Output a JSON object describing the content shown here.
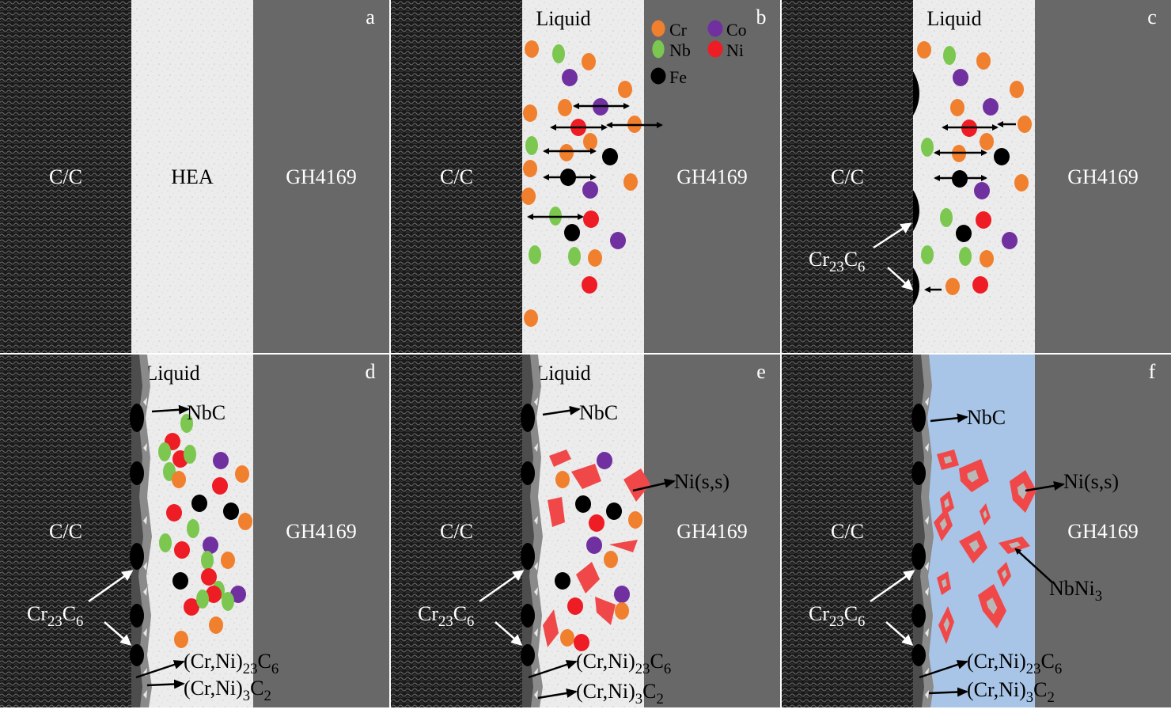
{
  "panels": [
    {
      "letter": "a",
      "cc_label": "C/C",
      "middle_label": "HEA",
      "alloy_label": "GH4169",
      "liquid_label": ""
    },
    {
      "letter": "b",
      "cc_label": "C/C",
      "middle_label": "",
      "alloy_label": "GH4169",
      "liquid_label": "Liquid"
    },
    {
      "letter": "c",
      "cc_label": "C/C",
      "middle_label": "",
      "alloy_label": "GH4169",
      "liquid_label": "Liquid"
    },
    {
      "letter": "d",
      "cc_label": "C/C",
      "middle_label": "",
      "alloy_label": "GH4169",
      "liquid_label": "Liquid"
    },
    {
      "letter": "e",
      "cc_label": "C/C",
      "middle_label": "",
      "alloy_label": "GH4169",
      "liquid_label": "Liquid"
    },
    {
      "letter": "f",
      "cc_label": "C/C",
      "middle_label": "",
      "alloy_label": "GH4169",
      "liquid_label": ""
    }
  ],
  "legend": [
    {
      "element": "Cr",
      "color": "#f07f2e",
      "shape": "oval-small"
    },
    {
      "element": "Co",
      "color": "#7030a0",
      "shape": "circle"
    },
    {
      "element": "Nb",
      "color": "#7cc750",
      "shape": "oval"
    },
    {
      "element": "Ni",
      "color": "#ee1c24",
      "shape": "circle"
    },
    {
      "element": "Fe",
      "color": "#000000",
      "shape": "circle"
    }
  ],
  "annotations": {
    "cr23c6": "Cr23C6",
    "nbc": "NbC",
    "ni_ss": "Ni(s,s)",
    "nbni3": "NbNi3",
    "crni23c6": "(Cr,Ni)23C6",
    "crni3c2": "(Cr,Ni)3C2"
  },
  "colors": {
    "cc_dark": "#1c1c1c",
    "hea_light": "#ececec",
    "gh4169_gray": "#686868",
    "solid_blue": "#a8c4e6",
    "cr": "#f07f2e",
    "co": "#7030a0",
    "nb": "#7cc750",
    "ni": "#ee1c24",
    "fe": "#000000",
    "ni_ss_red": "#f04848"
  }
}
